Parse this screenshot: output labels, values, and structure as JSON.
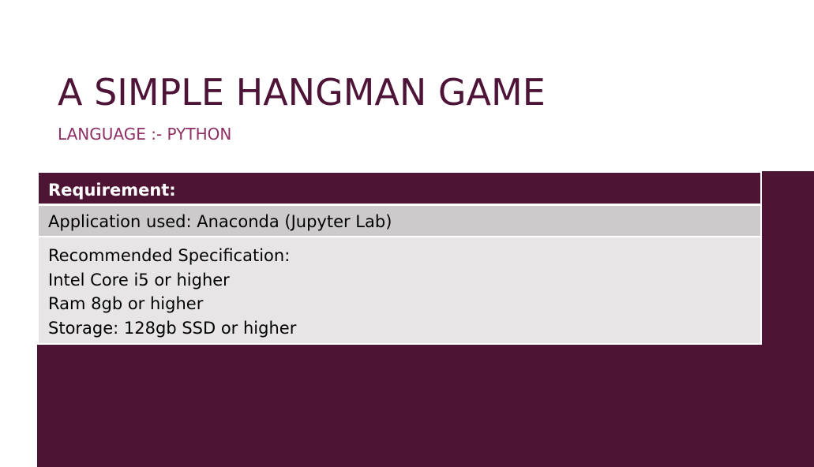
{
  "slide": {
    "title": "A SIMPLE HANGMAN GAME",
    "subtitle": "LANGUAGE :- PYTHON",
    "accent_color": "#4e1434",
    "subtitle_color": "#8e2f64"
  },
  "table": {
    "header": "Requirement:",
    "application": "Application used: Anaconda (Jupyter Lab)",
    "spec_lines": [
      "Recommended Specification:",
      "Intel Core i5 or higher",
      "Ram 8gb or higher",
      "Storage: 128gb SSD or higher"
    ]
  }
}
